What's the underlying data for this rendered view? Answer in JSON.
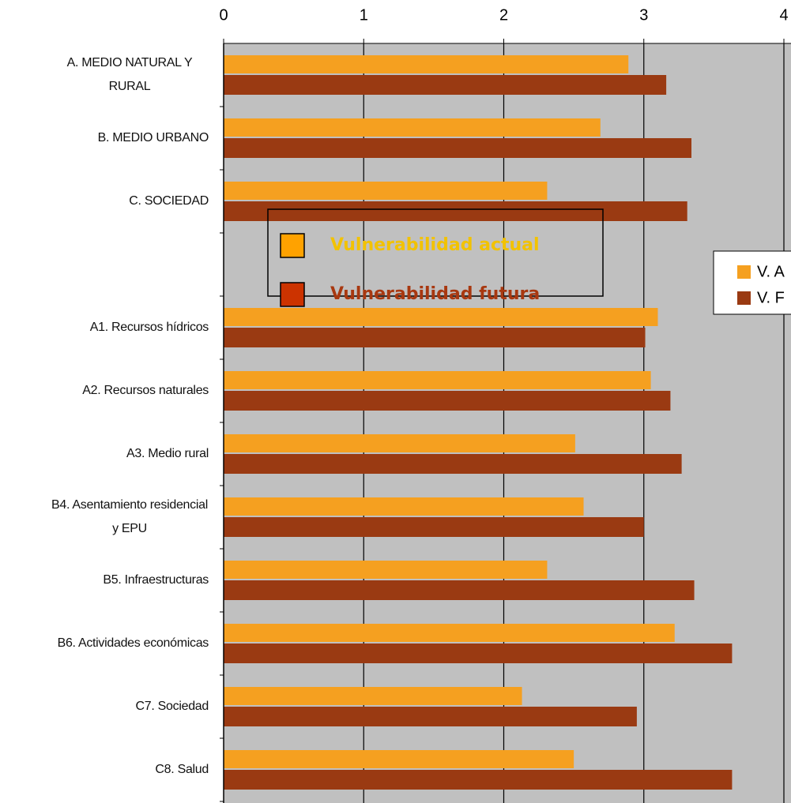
{
  "chart_data": {
    "type": "barh",
    "categories": [
      "A. MEDIO NATURAL Y RURAL",
      "B. MEDIO URBANO",
      "C. SOCIEDAD",
      null,
      "A1. Recursos hídricos",
      "A2. Recursos naturales",
      "A3. Medio rural",
      "B4. Asentamiento residencial y EPU",
      "B5. Infraestructuras",
      "B6. Actividades económicas",
      "C7. Sociedad",
      "C8. Salud"
    ],
    "series": [
      {
        "name": "Vulnerabilidad actual",
        "color": "#f5a020",
        "legend_color": "#ffa200",
        "text_color": "#f2c200",
        "values": [
          2.89,
          2.69,
          2.31,
          null,
          3.1,
          3.05,
          2.51,
          2.57,
          2.31,
          3.22,
          2.13,
          2.5
        ]
      },
      {
        "name": "Vulnerabilidad futura",
        "color": "#9a3a12",
        "legend_color": "#cc3300",
        "text_color": "#a83810",
        "values": [
          3.16,
          3.34,
          3.31,
          null,
          3.01,
          3.19,
          3.27,
          3.0,
          3.36,
          3.63,
          2.95,
          3.63
        ]
      }
    ],
    "legend2": [
      "V. A",
      "V. F"
    ],
    "xlim": [
      0,
      4
    ],
    "xticks": [
      0,
      1,
      2,
      3,
      4
    ],
    "grid": true
  }
}
